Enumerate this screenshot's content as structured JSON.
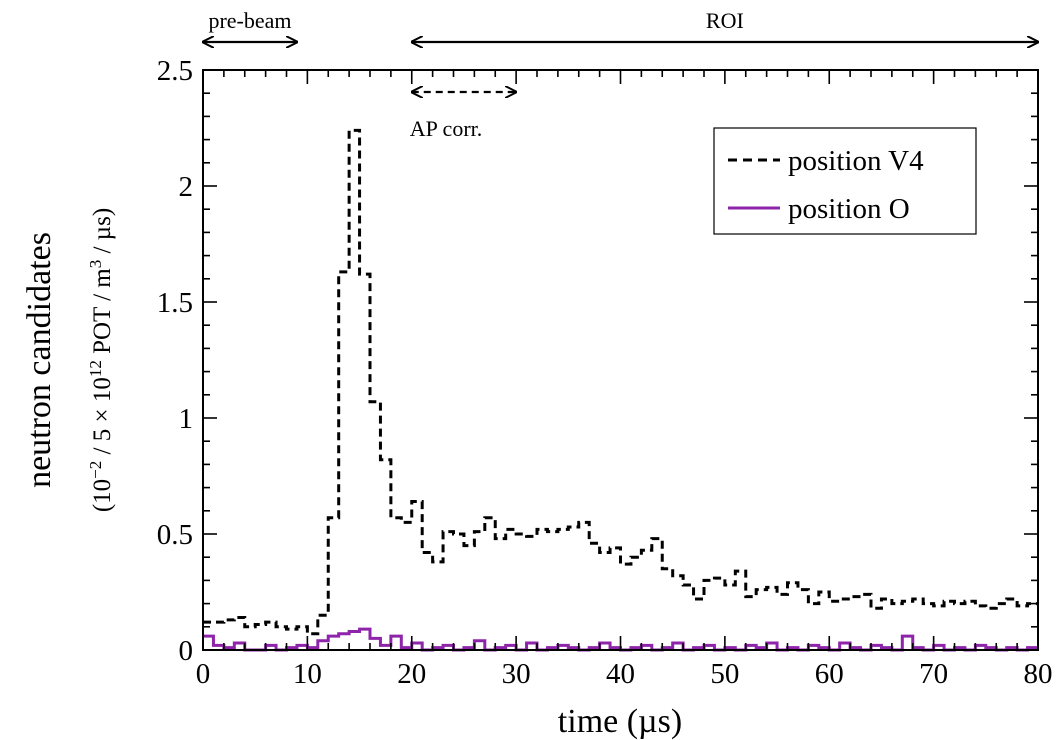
{
  "chart_data": {
    "type": "line",
    "step": true,
    "xlabel": "time (µs)",
    "ylabel": "neutron candidates",
    "ylabel_units": {
      "open": "(10",
      "exp1": "−2",
      "mid": " / 5 × 10",
      "exp2": "12",
      "mid2": " POT / m",
      "exp3": "3",
      "close": " / µs)"
    },
    "xlim": [
      0,
      80
    ],
    "ylim": [
      0,
      2.5
    ],
    "x_ticks": [
      0,
      10,
      20,
      30,
      40,
      50,
      60,
      70,
      80
    ],
    "x_tick_labels": [
      "0",
      "10",
      "20",
      "30",
      "40",
      "50",
      "60",
      "70",
      "80"
    ],
    "y_ticks": [
      0,
      0.5,
      1,
      1.5,
      2,
      2.5
    ],
    "y_tick_labels": [
      "0",
      "0.5",
      "1",
      "1.5",
      "2",
      "2.5"
    ],
    "bin_width": 1,
    "series": [
      {
        "name": "position V4",
        "color": "#000000",
        "dash": "dashed",
        "values": [
          0.12,
          0.12,
          0.13,
          0.14,
          0.1,
          0.11,
          0.12,
          0.1,
          0.09,
          0.1,
          0.07,
          0.15,
          0.57,
          1.63,
          2.24,
          1.62,
          1.07,
          0.82,
          0.57,
          0.55,
          0.64,
          0.42,
          0.38,
          0.51,
          0.5,
          0.45,
          0.51,
          0.57,
          0.48,
          0.52,
          0.5,
          0.49,
          0.52,
          0.51,
          0.52,
          0.53,
          0.55,
          0.46,
          0.42,
          0.44,
          0.37,
          0.4,
          0.43,
          0.48,
          0.35,
          0.32,
          0.28,
          0.22,
          0.3,
          0.31,
          0.28,
          0.34,
          0.23,
          0.26,
          0.27,
          0.24,
          0.29,
          0.26,
          0.2,
          0.25,
          0.21,
          0.22,
          0.23,
          0.24,
          0.18,
          0.22,
          0.2,
          0.21,
          0.22,
          0.2,
          0.19,
          0.21,
          0.2,
          0.21,
          0.19,
          0.18,
          0.2,
          0.22,
          0.19,
          0.2
        ]
      },
      {
        "name": "position O",
        "color": "#8e24aa",
        "dash": "solid",
        "values": [
          0.06,
          0.02,
          0.01,
          0.03,
          0.0,
          0.0,
          0.02,
          0.0,
          0.01,
          0.02,
          0.01,
          0.04,
          0.06,
          0.07,
          0.08,
          0.09,
          0.05,
          0.02,
          0.06,
          0.01,
          0.03,
          0.0,
          0.01,
          0.02,
          0.0,
          0.01,
          0.04,
          0.0,
          0.01,
          0.02,
          0.0,
          0.03,
          0.0,
          0.01,
          0.02,
          0.01,
          0.0,
          0.01,
          0.03,
          0.01,
          0.0,
          0.01,
          0.02,
          0.0,
          0.01,
          0.03,
          0.0,
          0.01,
          0.02,
          0.0,
          0.01,
          0.0,
          0.02,
          0.01,
          0.03,
          0.0,
          0.01,
          0.0,
          0.02,
          0.01,
          0.0,
          0.03,
          0.01,
          0.0,
          0.02,
          0.01,
          0.0,
          0.06,
          0.01,
          0.0,
          0.02,
          0.0,
          0.01,
          0.0,
          0.02,
          0.01,
          0.0,
          0.01,
          0.0,
          0.01
        ]
      }
    ],
    "annotations": [
      {
        "label": "pre-beam",
        "x_from": 0,
        "x_to": 9,
        "style": "solid",
        "placement": "above plot"
      },
      {
        "label": "ROI",
        "x_from": 20,
        "x_to": 80,
        "style": "solid",
        "placement": "above plot"
      },
      {
        "label": "AP corr.",
        "x_from": 20,
        "x_to": 30,
        "style": "dashed",
        "placement": "inside plot, top"
      }
    ],
    "legend": {
      "placement": "top-right"
    },
    "grid": false
  }
}
